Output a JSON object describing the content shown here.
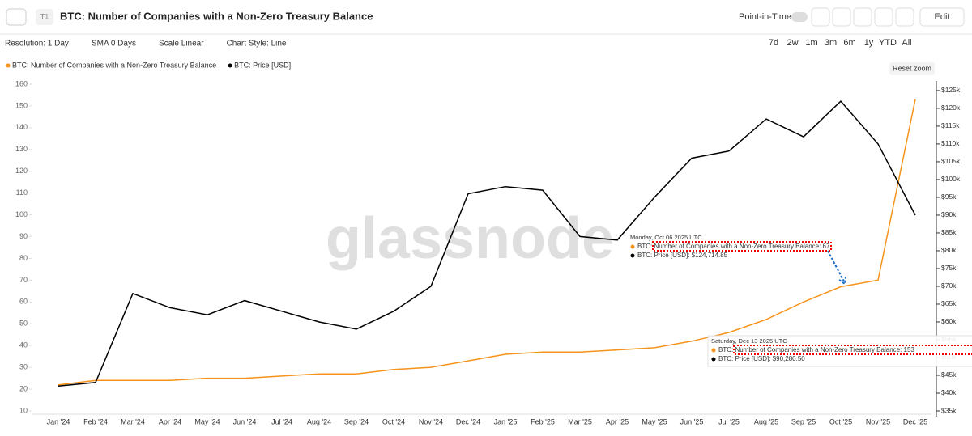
{
  "header": {
    "badge": "T1",
    "title": "BTC: Number of Companies with a Non-Zero Treasury Balance",
    "point_in_time": "Point-in-Time",
    "edit": "Edit"
  },
  "toolbar": {
    "options": [
      "Resolution: 1 Day",
      "SMA 0 Days",
      "Scale Linear",
      "Chart Style: Line"
    ],
    "ranges": [
      "7d",
      "2w",
      "1m",
      "3m",
      "6m",
      "1y",
      "YTD",
      "All"
    ],
    "reset": "Reset zoom"
  },
  "watermark": "glassnode",
  "tooltips": [
    {
      "date": "Monday, Oct 06 2025 UTC",
      "lines": [
        "BTC: Number of Companies with a Non-Zero Treasury Balance: 67",
        "BTC: Price [USD]: $124,714.85"
      ]
    },
    {
      "date": "Saturday, Dec 13 2025 UTC",
      "lines": [
        "BTC: Number of Companies with a Non-Zero Treasury Balance: 153",
        "BTC: Price [USD]: $90,280.50"
      ]
    }
  ],
  "chart_data": {
    "type": "line",
    "categories": [
      "Jan '24",
      "Feb '24",
      "Mar '24",
      "Apr '24",
      "May '24",
      "Jun '24",
      "Jul '24",
      "Aug '24",
      "Sep '24",
      "Oct '24",
      "Nov '24",
      "Dec '24",
      "Jan '25",
      "Feb '25",
      "Mar '25",
      "Apr '25",
      "May '25",
      "Jun '25",
      "Jul '25",
      "Aug '25",
      "Sep '25",
      "Oct '25",
      "Nov '25",
      "Dec '25"
    ],
    "series": [
      {
        "name": "BTC: Number of Companies with a Non-Zero Treasury Balance",
        "color": "#f7931a",
        "values": [
          22,
          24,
          24,
          24,
          25,
          25,
          26,
          27,
          27,
          29,
          30,
          33,
          36,
          37,
          37,
          38,
          39,
          42,
          46,
          52,
          60,
          67,
          70,
          153
        ]
      },
      {
        "name": "BTC: Price [USD]",
        "color": "#000000",
        "axis": "y2",
        "values": [
          42000,
          43000,
          68000,
          64000,
          62000,
          66000,
          63000,
          60000,
          58000,
          63000,
          70000,
          96000,
          98000,
          97000,
          84000,
          83000,
          95000,
          106000,
          108000,
          117000,
          112000,
          122000,
          110000,
          90000
        ]
      }
    ],
    "ylim": [
      10,
      160
    ],
    "yticks": [
      10,
      20,
      30,
      40,
      50,
      60,
      70,
      80,
      90,
      100,
      110,
      120,
      130,
      140,
      150,
      160
    ],
    "y2lim": [
      35000,
      126800
    ],
    "y2ticks": [
      {
        "value": 35000,
        "label": "$35k"
      },
      {
        "value": 40000,
        "label": "$40k"
      },
      {
        "value": 45000,
        "label": "$45k"
      },
      {
        "value": 50000,
        "label": "$50k"
      },
      {
        "value": 55000,
        "label": "$55k"
      },
      {
        "value": 60000,
        "label": "$60k"
      },
      {
        "value": 65000,
        "label": "$65k"
      },
      {
        "value": 70000,
        "label": "$70k"
      },
      {
        "value": 75000,
        "label": "$75k"
      },
      {
        "value": 80000,
        "label": "$80k"
      },
      {
        "value": 85000,
        "label": "$85k"
      },
      {
        "value": 90000,
        "label": "$90k"
      },
      {
        "value": 95000,
        "label": "$95k"
      },
      {
        "value": 100000,
        "label": "$100k"
      },
      {
        "value": 105000,
        "label": "$105k"
      },
      {
        "value": 110000,
        "label": "$110k"
      },
      {
        "value": 115000,
        "label": "$115k"
      },
      {
        "value": 120000,
        "label": "$120k"
      },
      {
        "value": 125000,
        "label": "$125k"
      }
    ],
    "legend": "top-left"
  }
}
